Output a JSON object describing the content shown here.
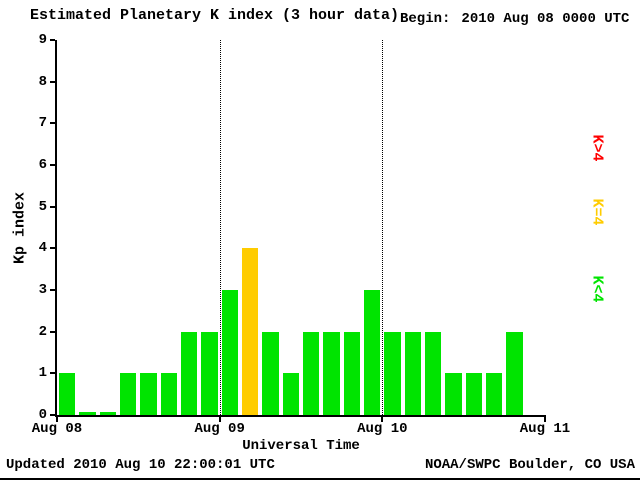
{
  "header": {
    "title": "Estimated Planetary K index (3 hour data)",
    "begin_label": "Begin:",
    "begin_value": "2010 Aug 08 0000 UTC"
  },
  "footer": {
    "updated": "Updated 2010 Aug 10 22:00:01 UTC",
    "credit": "NOAA/SWPC Boulder, CO USA"
  },
  "chart_data": {
    "type": "bar",
    "title": "Estimated Planetary K index (3 hour data)",
    "xlabel": "Universal Time",
    "ylabel": "Kp index",
    "ylim": [
      0,
      9
    ],
    "yticks": [
      0,
      1,
      2,
      3,
      4,
      5,
      6,
      7,
      8,
      9
    ],
    "xticks": [
      "Aug 08",
      "Aug 09",
      "Aug 10",
      "Aug 11"
    ],
    "x_total_slots": 24,
    "bar_period_hours": 3,
    "values": [
      1,
      0,
      0,
      1,
      1,
      1,
      2,
      2,
      3,
      4,
      2,
      1,
      2,
      2,
      2,
      3,
      2,
      2,
      2,
      1,
      1,
      1,
      2
    ],
    "colors": {
      "k_lt_4": "#00e400",
      "k_eq_4": "#ffcc00",
      "k_gt_4": "#ff0000",
      "axis": "#000000",
      "background": "#ffffff"
    },
    "color_rule": "K<4 green, K=4 yellow, K>4 red",
    "legend": [
      {
        "label": "K>4",
        "color": "#ff0000"
      },
      {
        "label": "K=4",
        "color": "#ffcc00"
      },
      {
        "label": "K<4",
        "color": "#00e400"
      }
    ],
    "dotted_gridlines_at": [
      "Aug 09",
      "Aug 10"
    ],
    "grid": "vertical dotted at interior day boundaries only",
    "legend_position": "right, rotated 90deg"
  }
}
